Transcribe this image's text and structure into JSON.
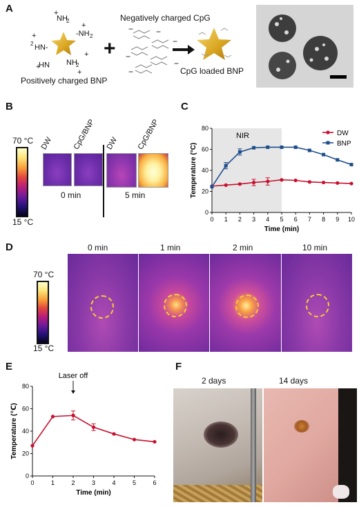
{
  "panels": {
    "A": "A",
    "B": "B",
    "C": "C",
    "D": "D",
    "E": "E",
    "F": "F"
  },
  "panel_a": {
    "negative_label": "Negatively charged CpG",
    "positive_label": "Positively charged BNP",
    "loaded_label": "CpG loaded BNP",
    "plus_sign": "+"
  },
  "panel_b": {
    "scale_max": "70 °C",
    "scale_min": "15 °C",
    "labels": [
      "DW",
      "CpG/BNP",
      "DW",
      "CpG/BNP"
    ],
    "time_0": "0 min",
    "time_5": "5 min"
  },
  "panel_d": {
    "scale_max": "70 °C",
    "scale_min": "15 °C",
    "times": [
      "0 min",
      "1 min",
      "2 min",
      "10 min"
    ]
  },
  "panel_f": {
    "labels": [
      "2 days",
      "14 days"
    ]
  },
  "colors": {
    "dw": "#c8102e",
    "bnp": "#1f4e8c",
    "e_line": "#c8102e"
  },
  "chart_data": [
    {
      "type": "line",
      "panel": "C",
      "title": "",
      "xlabel": "Time (min)",
      "ylabel": "Temperature (°C)",
      "xlim": [
        0,
        10
      ],
      "ylim": [
        0,
        80
      ],
      "xticks": [
        0,
        1,
        2,
        3,
        4,
        5,
        6,
        7,
        8,
        9,
        10
      ],
      "yticks": [
        0,
        20,
        40,
        60,
        80
      ],
      "shaded_region": {
        "x": [
          0,
          5
        ],
        "label": "NIR"
      },
      "legend": "top-right",
      "x": [
        0,
        1,
        2,
        3,
        4,
        5,
        6,
        7,
        8,
        9,
        10
      ],
      "series": [
        {
          "name": "DW",
          "values": [
            25,
            26,
            27,
            28.5,
            29.5,
            31,
            30.5,
            29,
            28.5,
            28,
            27.5
          ],
          "err": [
            0,
            0,
            0,
            3,
            3.5,
            0,
            0,
            0,
            0,
            0,
            0
          ],
          "color": "#c8102e",
          "marker": "circle"
        },
        {
          "name": "BNP",
          "values": [
            24.5,
            44.5,
            57.5,
            61.5,
            62,
            62,
            62,
            59,
            55,
            50,
            45.5
          ],
          "err": [
            0,
            3,
            3,
            0,
            0,
            0,
            0,
            0,
            0,
            0,
            0
          ],
          "color": "#1f4e8c",
          "marker": "square"
        }
      ]
    },
    {
      "type": "line",
      "panel": "E",
      "title": "",
      "xlabel": "Time (min)",
      "ylabel": "Temperature (℃)",
      "xlim": [
        0,
        6
      ],
      "ylim": [
        0,
        80
      ],
      "xticks": [
        0,
        1,
        2,
        3,
        4,
        5,
        6
      ],
      "yticks": [
        0,
        20,
        40,
        60,
        80
      ],
      "annotation": {
        "text": "Laser off",
        "x": 2
      },
      "x": [
        0,
        1,
        2,
        3,
        4,
        5,
        6
      ],
      "series": [
        {
          "name": "",
          "values": [
            27,
            53,
            54,
            43.5,
            37.5,
            32.5,
            30.5
          ],
          "err": [
            0,
            0,
            4,
            3,
            0,
            0,
            0
          ],
          "color": "#c8102e",
          "marker": "circle"
        }
      ]
    }
  ]
}
